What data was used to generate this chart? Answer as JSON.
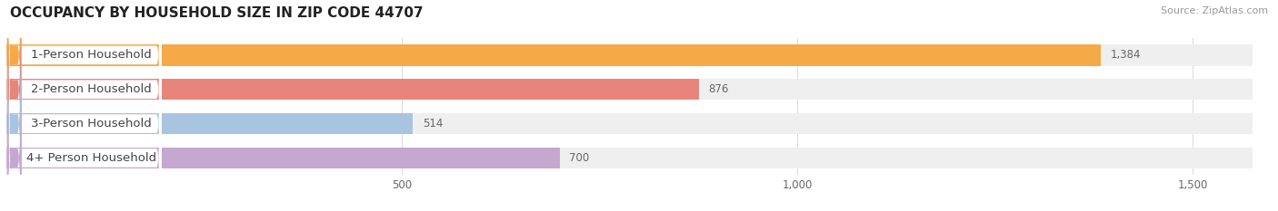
{
  "title": "OCCUPANCY BY HOUSEHOLD SIZE IN ZIP CODE 44707",
  "source": "Source: ZipAtlas.com",
  "categories": [
    "1-Person Household",
    "2-Person Household",
    "3-Person Household",
    "4+ Person Household"
  ],
  "values": [
    1384,
    876,
    514,
    700
  ],
  "bar_colors": [
    "#F5A947",
    "#E8857A",
    "#A8C4E0",
    "#C4A8D0"
  ],
  "xlim_max": 1600,
  "xticks": [
    500,
    1000,
    1500
  ],
  "xtick_labels": [
    "500",
    "1,000",
    "1,500"
  ],
  "title_fontsize": 11,
  "label_fontsize": 9.5,
  "value_fontsize": 8.5,
  "source_fontsize": 8,
  "bar_height": 0.62,
  "background_color": "#FFFFFF",
  "bar_bg_color": "#EFEFEF",
  "grid_color": "#DDDDDD",
  "label_color": "#444444",
  "value_color": "#666666",
  "title_color": "#222222",
  "source_color": "#999999"
}
